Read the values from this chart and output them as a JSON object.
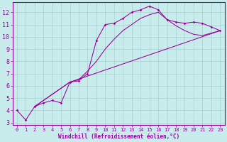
{
  "xlabel": "Windchill (Refroidissement éolien,°C)",
  "bg_color": "#c8ecec",
  "grid_color": "#a8d0d0",
  "line_color": "#990099",
  "xlim": [
    -0.5,
    23.5
  ],
  "ylim": [
    2.8,
    12.8
  ],
  "yticks": [
    3,
    4,
    5,
    6,
    7,
    8,
    9,
    10,
    11,
    12
  ],
  "xticks": [
    0,
    1,
    2,
    3,
    4,
    5,
    6,
    7,
    8,
    9,
    10,
    11,
    12,
    13,
    14,
    15,
    16,
    17,
    18,
    19,
    20,
    21,
    22,
    23
  ],
  "line1_x": [
    0,
    1,
    2,
    3,
    4,
    5,
    6,
    7,
    8,
    9,
    10,
    11,
    12,
    13,
    14,
    15,
    16,
    17,
    18,
    19,
    20,
    21,
    22,
    23
  ],
  "line1_y": [
    4.0,
    3.2,
    4.3,
    4.6,
    4.8,
    4.6,
    6.3,
    6.4,
    7.0,
    9.7,
    11.0,
    11.1,
    11.5,
    12.0,
    12.2,
    12.5,
    12.2,
    11.4,
    11.2,
    11.1,
    11.2,
    11.1,
    10.8,
    10.5
  ],
  "line2_x": [
    2,
    6,
    23
  ],
  "line2_y": [
    4.3,
    6.3,
    10.5
  ],
  "line3_x": [
    2,
    6,
    7,
    8,
    9,
    10,
    11,
    12,
    13,
    14,
    15,
    16,
    17,
    18,
    19,
    20,
    21,
    22,
    23
  ],
  "line3_y": [
    4.3,
    6.3,
    6.5,
    7.2,
    8.0,
    9.0,
    9.8,
    10.5,
    11.0,
    11.5,
    11.8,
    12.0,
    11.4,
    10.9,
    10.5,
    10.2,
    10.1,
    10.3,
    10.5
  ]
}
